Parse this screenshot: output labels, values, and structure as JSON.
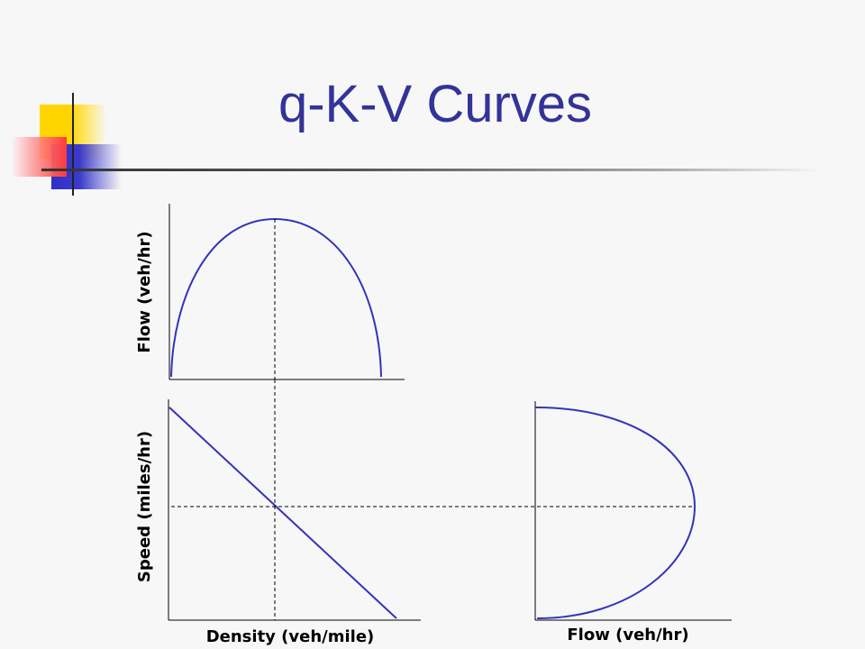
{
  "slide": {
    "title": "q-K-V Curves"
  },
  "labels": {
    "flow_axis_top": "Flow (veh/hr)",
    "speed_axis": "Speed (miles/hr)",
    "density_axis": "Density (veh/mile)",
    "flow_axis_bottom": "Flow (veh/hr)"
  },
  "colors": {
    "title": "#333399",
    "curve": "#3333bb",
    "axis": "#000000"
  }
}
